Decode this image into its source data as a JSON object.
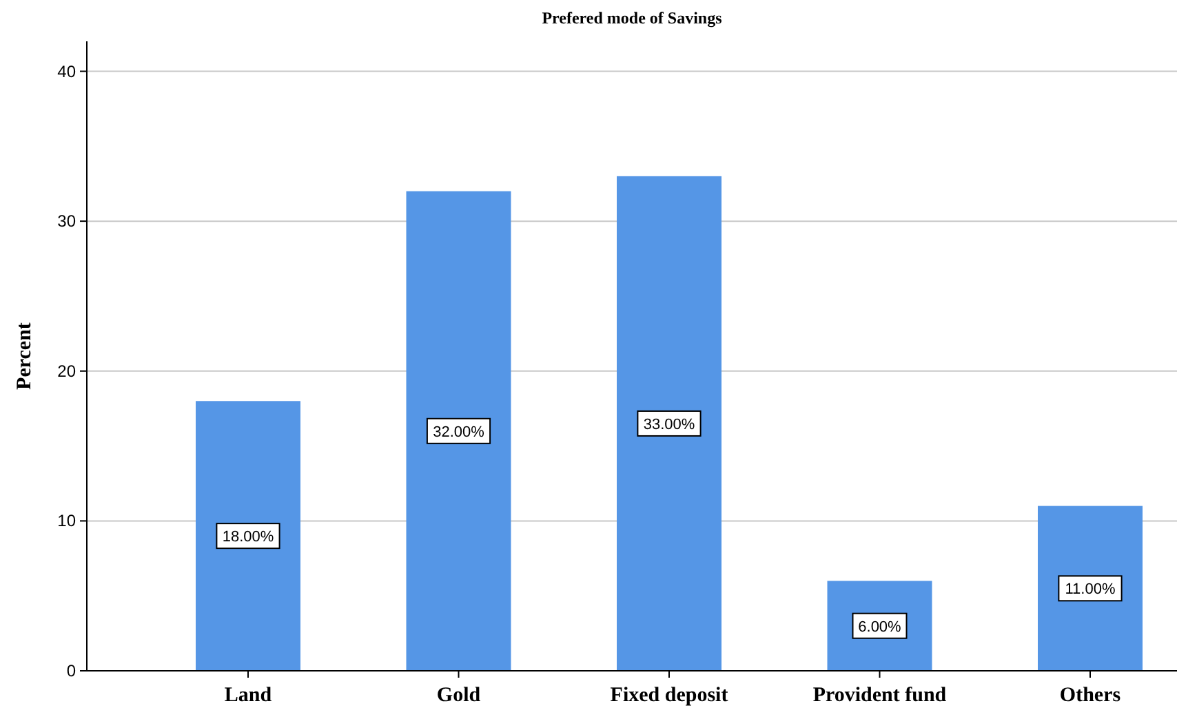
{
  "chart_data": {
    "type": "bar",
    "title": "Prefered mode of Savings",
    "ylabel": "Percent",
    "categories": [
      "Land",
      "Gold",
      "Fixed deposit",
      "Provident fund",
      "Others"
    ],
    "values": [
      18,
      32,
      33,
      6,
      11
    ],
    "value_labels": [
      "18.00%",
      "32.00%",
      "33.00%",
      "6.00%",
      "11.00%"
    ],
    "color": "#5596e6",
    "ylim": [
      0,
      42
    ],
    "yticks": [
      0,
      10,
      20,
      30,
      40
    ],
    "grid": "y"
  }
}
